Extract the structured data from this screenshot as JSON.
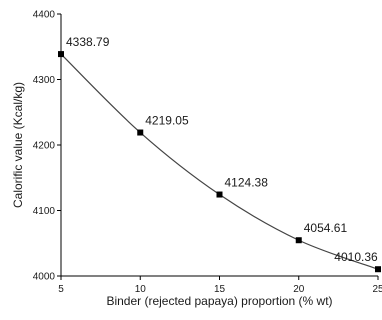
{
  "chart_data": {
    "type": "line",
    "xlabel": "Binder (rejected papaya) proportion (% wt)",
    "ylabel": "Calorific value (Kcal/kg)",
    "x": [
      5,
      10,
      15,
      20,
      25
    ],
    "series": [
      {
        "values": [
          4338.79,
          4219.05,
          4124.38,
          4054.61,
          4010.36
        ]
      }
    ],
    "data_labels": [
      "4338.79",
      "4219.05",
      "4124.38",
      "4054.61",
      "4010.36"
    ],
    "xlim": [
      5,
      25
    ],
    "ylim": [
      4000,
      4400
    ],
    "x_ticks": [
      5,
      10,
      15,
      20,
      25
    ],
    "y_ticks": [
      4000,
      4100,
      4200,
      4300,
      4400
    ],
    "grid": false,
    "line_color": "#444444",
    "marker_color": "#000000"
  }
}
